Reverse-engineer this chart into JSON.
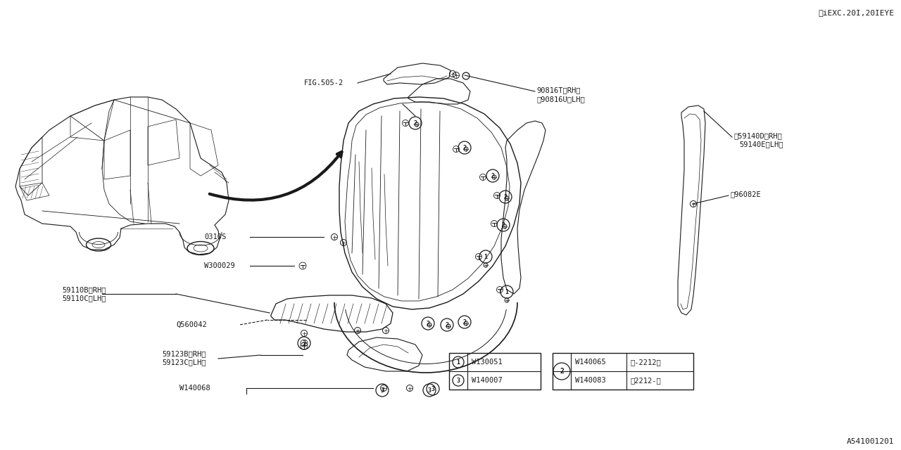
{
  "bg_color": "#ffffff",
  "line_color": "#1a1a1a",
  "fig_ref": "A541001201",
  "top_right_note": "※iEXC.20I,20IEYE",
  "labels": {
    "fig505": "FIG.505-2",
    "part_90816T": "90816T〈RH〉",
    "part_90816U": "※90816U〈LH〉",
    "part_59140D": "※59140D〈RH〉",
    "part_59140E": "59140E〈LH〉",
    "part_96082E": "※96082E",
    "part_0310S": "0310S",
    "part_W300029": "W300029",
    "part_59110B": "59110B〈RH〉",
    "part_59110C": "59110C〈LH〉",
    "part_Q560042": "Q560042",
    "part_59123B": "59123B〈RH〉",
    "part_59123C": "59123C〈LH〉",
    "part_W140068": "W140068"
  },
  "legend1": [
    {
      "num": "1",
      "part": "W130051"
    },
    {
      "num": "3",
      "part": "W140007"
    }
  ],
  "legend2_num": "2",
  "legend2_rows": [
    {
      "part": "W140065",
      "range": "〈-2212〉"
    },
    {
      "part": "W140083",
      "range": "〈2212-〉"
    }
  ]
}
